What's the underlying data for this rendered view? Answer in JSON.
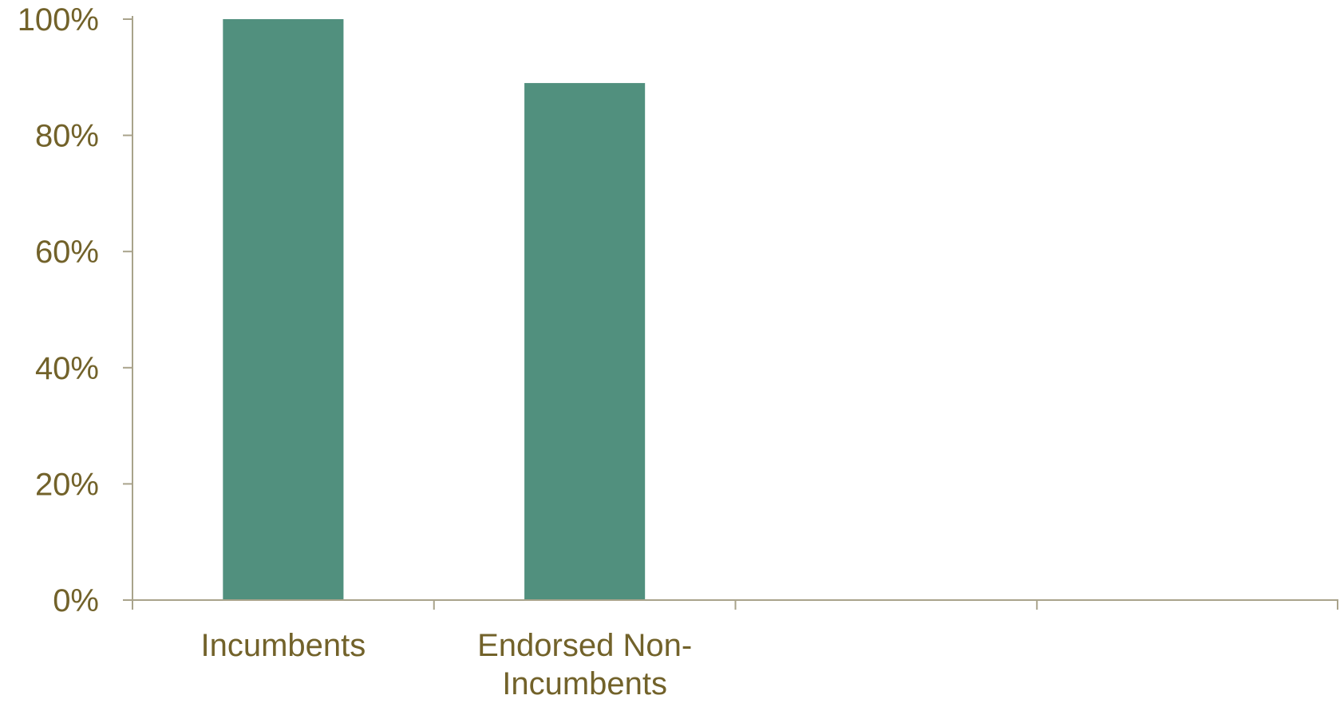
{
  "chart_data": {
    "type": "bar",
    "title": "",
    "xlabel": "",
    "ylabel": "",
    "categories": [
      [
        "Incumbents"
      ],
      [
        "Endorsed Non-",
        "Incumbents"
      ],
      [],
      []
    ],
    "values": [
      100,
      89,
      null,
      null
    ],
    "ylim": [
      0,
      100
    ],
    "yticks": [
      {
        "value": 0,
        "label": "0%"
      },
      {
        "value": 20,
        "label": "20%"
      },
      {
        "value": 40,
        "label": "40%"
      },
      {
        "value": 60,
        "label": "60%"
      },
      {
        "value": 80,
        "label": "80%"
      },
      {
        "value": 100,
        "label": "100%"
      }
    ],
    "grid": false,
    "legend": "none",
    "colors": {
      "bar": "#51907E",
      "axis": "#A9A38B",
      "text": "#72622A"
    }
  }
}
